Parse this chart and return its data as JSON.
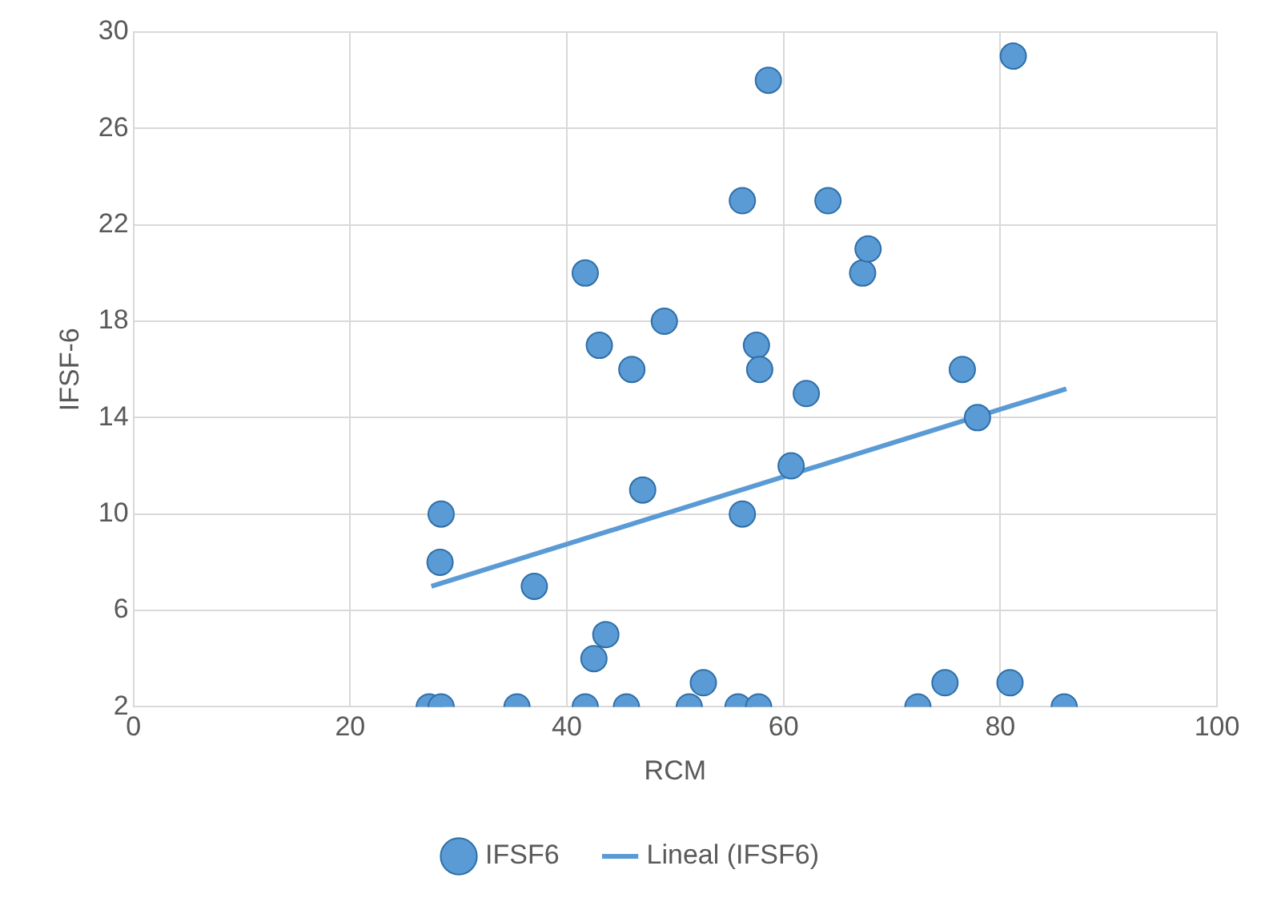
{
  "chart_data": {
    "type": "scatter",
    "xlabel": "RCM",
    "ylabel": "IFSF-6",
    "series": [
      {
        "name": "IFSF6",
        "type": "scatter",
        "color": "#5b9bd5",
        "marker": "circle",
        "x": [
          27.3,
          28.4,
          28.4,
          28.3,
          37,
          35.4,
          41.7,
          41.7,
          42.5,
          43,
          43.6,
          45.5,
          46,
          47,
          49,
          51.3,
          52.6,
          55.8,
          56.2,
          56.2,
          57.5,
          57.8,
          57.7,
          58.6,
          60.7,
          62.1,
          64.1,
          67.3,
          67.8,
          72.4,
          74.9,
          76.5,
          77.9,
          80.9,
          81.2,
          85.9
        ],
        "values": [
          2,
          2,
          10,
          8,
          7,
          2,
          20,
          2,
          4,
          17,
          5,
          2,
          16,
          11,
          18,
          2,
          3,
          2,
          23,
          10,
          17,
          16,
          2,
          28,
          12,
          15,
          23,
          20,
          21,
          2,
          3,
          16,
          14,
          3,
          29,
          2
        ]
      },
      {
        "name": "Lineal (IFSF6)",
        "type": "line",
        "color": "#5b9bd5",
        "marker": "none",
        "x": [
          27.5,
          86.1
        ],
        "values": [
          7.0,
          15.2
        ]
      }
    ],
    "xlim": [
      0,
      100
    ],
    "xticks": [
      0,
      20,
      40,
      60,
      80,
      100
    ],
    "ylim": [
      2,
      30
    ],
    "yticks": [
      2,
      6,
      10,
      14,
      18,
      22,
      26,
      30
    ],
    "grid": true,
    "legend": "bottom"
  }
}
